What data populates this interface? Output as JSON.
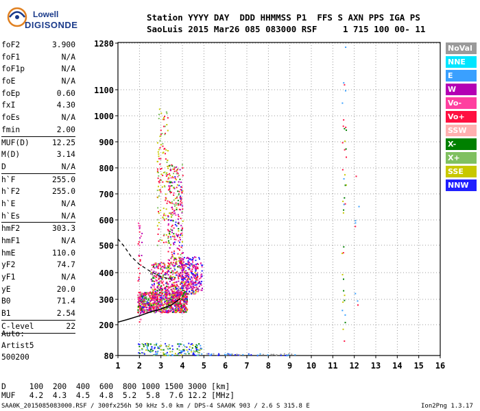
{
  "logo": {
    "line1": "Lowell",
    "line2": "DIGISONDE"
  },
  "header": {
    "line1": "Station YYYY DAY  DDD HHMMSS P1  FFS S AXN PPS IGA PS",
    "line2": "SaoLuis 2015 Mar26 085 083000 RSF     1 715 100 00- 11"
  },
  "params_a": [
    {
      "label": "foF2",
      "value": "3.900"
    },
    {
      "label": "foF1",
      "value": "N/A"
    },
    {
      "label": "foF1p",
      "value": "N/A"
    },
    {
      "label": "foE",
      "value": "N/A"
    },
    {
      "label": "foEp",
      "value": "0.60"
    },
    {
      "label": "fxI",
      "value": "4.30"
    },
    {
      "label": "foEs",
      "value": "N/A"
    },
    {
      "label": "fmin",
      "value": "2.00"
    }
  ],
  "params_b": [
    {
      "label": "MUF(D)",
      "value": "12.25"
    },
    {
      "label": "M(D)",
      "value": "3.14"
    },
    {
      "label": "D",
      "value": "N/A"
    }
  ],
  "params_c": [
    {
      "label": "h`F",
      "value": "255.0"
    },
    {
      "label": "h`F2",
      "value": "255.0"
    },
    {
      "label": "h`E",
      "value": "N/A"
    },
    {
      "label": "h`Es",
      "value": "N/A"
    }
  ],
  "params_d": [
    {
      "label": "hmF2",
      "value": "303.3"
    },
    {
      "label": "hmF1",
      "value": "N/A"
    },
    {
      "label": "hmE",
      "value": "110.0"
    },
    {
      "label": "yF2",
      "value": "74.7"
    },
    {
      "label": "yF1",
      "value": "N/A"
    },
    {
      "label": "yE",
      "value": "20.0"
    },
    {
      "label": "B0",
      "value": "71.4"
    },
    {
      "label": "B1",
      "value": "2.54"
    }
  ],
  "params_e": [
    {
      "label": "C-level",
      "value": "22"
    }
  ],
  "auto": {
    "line1": "Auto:",
    "line2": "Artist5",
    "line3": "500200"
  },
  "legend": [
    {
      "label": "NoVal",
      "color": "#9a9a9a"
    },
    {
      "label": "NNE",
      "color": "#00e5ff"
    },
    {
      "label": "E",
      "color": "#3aa0ff"
    },
    {
      "label": "W",
      "color": "#b400b4"
    },
    {
      "label": "Vo-",
      "color": "#ff3fa0"
    },
    {
      "label": "Vo+",
      "color": "#ff1040"
    },
    {
      "label": "SSW",
      "color": "#ffb0b0"
    },
    {
      "label": "X-",
      "color": "#008000"
    },
    {
      "label": "X+",
      "color": "#80c060"
    },
    {
      "label": "SSE",
      "color": "#c8c800"
    },
    {
      "label": "NNW",
      "color": "#2020ff"
    }
  ],
  "chart_data": {
    "type": "scatter",
    "xlim": [
      1,
      16
    ],
    "x_ticks": [
      "1",
      "2",
      "3",
      "4",
      "5",
      "6",
      "7",
      "8",
      "9",
      "10",
      "11",
      "12",
      "13",
      "14",
      "15",
      "16"
    ],
    "y_ticks": [
      {
        "value": 80,
        "label": "80"
      },
      {
        "value": 200,
        "label": "200"
      },
      {
        "value": 300,
        "label": "300"
      },
      {
        "value": 400,
        "label": "400"
      },
      {
        "value": 500,
        "label": "500"
      },
      {
        "value": 600,
        "label": "600"
      },
      {
        "value": 700,
        "label": "700"
      },
      {
        "value": 800,
        "label": "800"
      },
      {
        "value": 900,
        "label": "900"
      },
      {
        "value": 1000,
        "label": "1000"
      },
      {
        "value": 1100,
        "label": "1100"
      },
      {
        "value": 1280,
        "label": "1280"
      }
    ],
    "grid": true,
    "profile_curve": [
      [
        1,
        210
      ],
      [
        1.5,
        222
      ],
      [
        2,
        235
      ],
      [
        2.5,
        250
      ],
      [
        3,
        262
      ],
      [
        3.5,
        278
      ],
      [
        3.9,
        303
      ]
    ],
    "dashed_curve": [
      [
        1,
        525
      ],
      [
        1.3,
        495
      ],
      [
        1.6,
        460
      ],
      [
        2,
        430
      ],
      [
        2.5,
        405
      ],
      [
        3,
        385
      ],
      [
        3.5,
        375
      ]
    ]
  },
  "footer": {
    "d_line": "D     100  200  400  600  800 1000 1500 3000 [km]",
    "muf_line": "MUF   4.2  4.3  4.5  4.8  5.2  5.8  7.6 12.2 [MHz]",
    "file_line": "SAA0K_2015085083000.RSF / 300fx256h 50 kHz 5.0 km / DPS-4 SAA0K 903 / 2.6 S 315.8 E",
    "version": "Ion2Png 1.3.17"
  }
}
